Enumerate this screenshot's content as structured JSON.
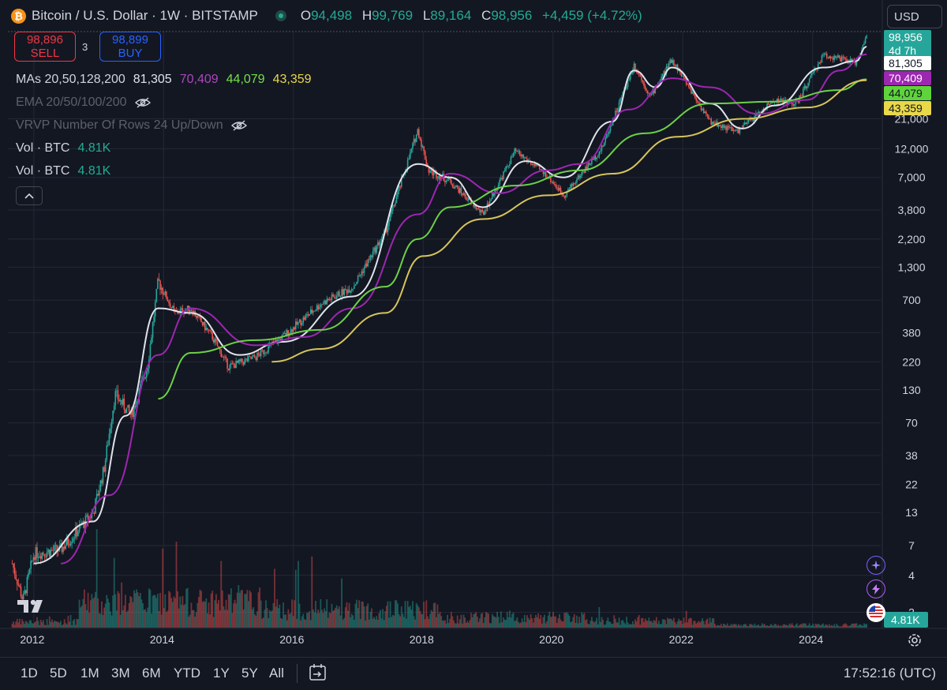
{
  "header": {
    "logo_glyph": "₿",
    "symbol_title": "Bitcoin / U.S. Dollar · 1W · BITSTAMP",
    "ohlc": [
      {
        "k": "O",
        "v": "94,498"
      },
      {
        "k": "H",
        "v": "99,769"
      },
      {
        "k": "L",
        "v": "89,164"
      },
      {
        "k": "C",
        "v": "98,956"
      }
    ],
    "change": "+4,459 (+4.72%)",
    "currency": "USD"
  },
  "trade": {
    "sell_price": "98,896",
    "sell_label": "SELL",
    "spread": "3",
    "buy_price": "98,899",
    "buy_label": "BUY"
  },
  "legend": {
    "ma_title": "MAs 20,50,128,200",
    "ma_values": [
      "81,305",
      "70,409",
      "44,079",
      "43,359"
    ],
    "ema_title": "EMA 20/50/100/200",
    "vrvp_title": "VRVP Number Of Rows 24 Up/Down",
    "vol1_title": "Vol · BTC",
    "vol1_value": "4.81K",
    "vol2_title": "Vol · BTC",
    "vol2_value": "4.81K",
    "collapse_glyph": "^"
  },
  "colors": {
    "background": "#131722",
    "grid": "#242836",
    "text": "#d1d4dc",
    "up": "#26a69a",
    "down": "#ef5350",
    "ma20": "#e0e3eb",
    "ma50": "#9c27b0",
    "ma128": "#6dd146",
    "ma200": "#d6c55a"
  },
  "chart_data": {
    "type": "candlestick",
    "interval": "1W",
    "scale": "log",
    "grid": true,
    "x_ticks": [
      "2012",
      "2014",
      "2016",
      "2018",
      "2020",
      "2022",
      "2024"
    ],
    "y_ticks": [
      2,
      4,
      7,
      13,
      22,
      38,
      70,
      130,
      220,
      380,
      700,
      1300,
      2200,
      3800,
      7000,
      12000,
      21000
    ],
    "ylim": [
      1.5,
      108000
    ],
    "price_path": [
      [
        "2011-09",
        5
      ],
      [
        "2011-11",
        2.5
      ],
      [
        "2012-01",
        6
      ],
      [
        "2012-06",
        6.5
      ],
      [
        "2012-12",
        13
      ],
      [
        "2013-02",
        30
      ],
      [
        "2013-04",
        120
      ],
      [
        "2013-07",
        80
      ],
      [
        "2013-10",
        200
      ],
      [
        "2013-12",
        1000
      ],
      [
        "2014-03",
        550
      ],
      [
        "2014-06",
        600
      ],
      [
        "2014-10",
        350
      ],
      [
        "2015-01",
        200
      ],
      [
        "2015-06",
        240
      ],
      [
        "2015-11",
        350
      ],
      [
        "2016-06",
        650
      ],
      [
        "2016-12",
        900
      ],
      [
        "2017-06",
        2500
      ],
      [
        "2017-12",
        17000
      ],
      [
        "2018-02",
        8000
      ],
      [
        "2018-06",
        6500
      ],
      [
        "2018-12",
        3500
      ],
      [
        "2019-06",
        11500
      ],
      [
        "2019-12",
        7200
      ],
      [
        "2020-03",
        5000
      ],
      [
        "2020-10",
        12000
      ],
      [
        "2021-04",
        58000
      ],
      [
        "2021-07",
        32000
      ],
      [
        "2021-11",
        64000
      ],
      [
        "2022-06",
        20000
      ],
      [
        "2022-11",
        16500
      ],
      [
        "2023-06",
        30000
      ],
      [
        "2023-10",
        28000
      ],
      [
        "2024-03",
        70000
      ],
      [
        "2024-09",
        60000
      ],
      [
        "2024-11",
        98956
      ]
    ],
    "ma_paths": {
      "ma20": [
        [
          "2012-01",
          5
        ],
        [
          "2012-12",
          11
        ],
        [
          "2013-06",
          80
        ],
        [
          "2013-12",
          600
        ],
        [
          "2014-06",
          550
        ],
        [
          "2015-03",
          250
        ],
        [
          "2015-11",
          320
        ],
        [
          "2016-12",
          750
        ],
        [
          "2017-12",
          9000
        ],
        [
          "2018-06",
          7000
        ],
        [
          "2018-12",
          4000
        ],
        [
          "2019-08",
          9500
        ],
        [
          "2020-03",
          7000
        ],
        [
          "2020-12",
          20000
        ],
        [
          "2021-04",
          52000
        ],
        [
          "2021-08",
          38000
        ],
        [
          "2021-11",
          55000
        ],
        [
          "2022-06",
          28000
        ],
        [
          "2022-12",
          17500
        ],
        [
          "2023-06",
          27000
        ],
        [
          "2024-03",
          55000
        ],
        [
          "2024-09",
          62000
        ],
        [
          "2024-11",
          81305
        ]
      ],
      "ma50": [
        [
          "2012-06",
          5
        ],
        [
          "2013-03",
          18
        ],
        [
          "2013-12",
          250
        ],
        [
          "2014-06",
          600
        ],
        [
          "2015-06",
          300
        ],
        [
          "2016-03",
          350
        ],
        [
          "2016-12",
          600
        ],
        [
          "2017-12",
          3500
        ],
        [
          "2018-06",
          7500
        ],
        [
          "2019-03",
          5200
        ],
        [
          "2019-12",
          8000
        ],
        [
          "2020-06",
          9000
        ],
        [
          "2021-03",
          25000
        ],
        [
          "2021-11",
          45000
        ],
        [
          "2022-06",
          38000
        ],
        [
          "2023-03",
          23000
        ],
        [
          "2023-12",
          30000
        ],
        [
          "2024-06",
          52000
        ],
        [
          "2024-11",
          70409
        ]
      ],
      "ma128": [
        [
          "2013-12",
          110
        ],
        [
          "2014-06",
          260
        ],
        [
          "2015-06",
          330
        ],
        [
          "2016-06",
          400
        ],
        [
          "2017-06",
          900
        ],
        [
          "2017-12",
          2200
        ],
        [
          "2018-06",
          4000
        ],
        [
          "2019-06",
          6000
        ],
        [
          "2020-06",
          8000
        ],
        [
          "2021-06",
          16000
        ],
        [
          "2022-06",
          28000
        ],
        [
          "2023-06",
          29000
        ],
        [
          "2024-06",
          36000
        ],
        [
          "2024-11",
          44079
        ]
      ],
      "ma200": [
        [
          "2015-09",
          220
        ],
        [
          "2016-06",
          280
        ],
        [
          "2017-06",
          550
        ],
        [
          "2018-01",
          1600
        ],
        [
          "2018-12",
          3200
        ],
        [
          "2019-12",
          5000
        ],
        [
          "2020-12",
          7500
        ],
        [
          "2021-12",
          15000
        ],
        [
          "2022-12",
          21000
        ],
        [
          "2023-12",
          26000
        ],
        [
          "2024-11",
          43359
        ]
      ]
    },
    "price_axis_labels": [
      {
        "value": 98956,
        "text": "98,956",
        "bg": "#26a69a",
        "fg": "#ffffff"
      },
      {
        "value": 81305,
        "text": "81,305",
        "bg": "#ffffff",
        "fg": "#131722"
      },
      {
        "value": 70409,
        "text": "70,409",
        "bg": "#9c27b0",
        "fg": "#ffffff"
      },
      {
        "value": 44079,
        "text": "44,079",
        "bg": "#5ed43a",
        "fg": "#131722"
      },
      {
        "value": 43359,
        "text": "43,359",
        "bg": "#e8d84a",
        "fg": "#131722"
      }
    ],
    "countdown": "4d 7h",
    "volume_last": "4.81K"
  },
  "toolbar": {
    "ranges": [
      "1D",
      "5D",
      "1M",
      "3M",
      "6M",
      "YTD",
      "1Y",
      "5Y",
      "All"
    ],
    "clock": "17:52:16 (UTC)"
  }
}
